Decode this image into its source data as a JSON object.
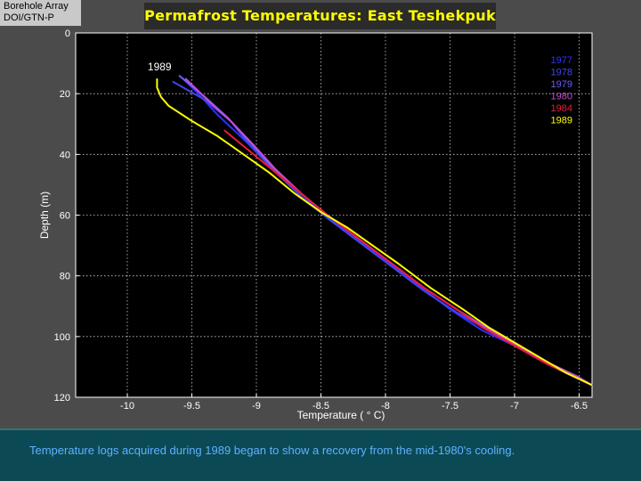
{
  "badge": {
    "line1": "Borehole Array",
    "line2": "DOI/GTN-P"
  },
  "title": "Permafrost Temperatures:  East Teshekpuk",
  "caption": "Temperature logs acquired during 1989 began to show a recovery from the mid-1980's cooling.",
  "chart_data": {
    "type": "line",
    "title": "Permafrost Temperatures:  East Teshekpuk",
    "xlabel": "Temperature (  ° C)",
    "ylabel": "Depth (m)",
    "xlim": [
      -10.4,
      -6.4
    ],
    "ylim": [
      120,
      0
    ],
    "xticks": [
      -10,
      -9.5,
      -9,
      -8.5,
      -8,
      -7.5,
      -7,
      -6.5
    ],
    "xtick_labels": [
      "-10",
      "-9.5",
      "-9",
      "-8.5",
      "-8",
      "-7.5",
      "-7",
      "-6.5"
    ],
    "yticks": [
      0,
      20,
      40,
      60,
      80,
      100,
      120
    ],
    "ytick_labels": [
      "0",
      "20",
      "40",
      "60",
      "80",
      "100",
      "120"
    ],
    "grid": true,
    "legend": "top-right",
    "annotations": [
      {
        "text": "1989",
        "x": -9.75,
        "y": 12
      }
    ],
    "series": [
      {
        "name": "1977",
        "color": "#3030ff",
        "x": [
          -9.57,
          -9.45,
          -9.3,
          -9.1,
          -8.9,
          -8.7,
          -8.5,
          -8.25,
          -8.0,
          -7.75,
          -7.5,
          -7.25,
          -7.0,
          -6.75,
          -6.55,
          -6.4
        ],
        "y": [
          15,
          20,
          27,
          35,
          43,
          51,
          59,
          67,
          75,
          83,
          91,
          98,
          103,
          109,
          113,
          116
        ]
      },
      {
        "name": "1978",
        "color": "#4444ee",
        "x": [
          -9.65,
          -9.4,
          -9.2,
          -9.05,
          -8.85,
          -8.65,
          -8.45,
          -8.2,
          -7.95,
          -7.7,
          -7.45,
          -7.2,
          -6.95,
          -6.7,
          -6.5,
          -6.4
        ],
        "y": [
          16,
          22,
          29,
          37,
          46,
          54,
          61,
          69,
          77,
          85,
          92,
          98,
          104,
          110,
          114,
          116
        ]
      },
      {
        "name": "1979",
        "color": "#6a5cff",
        "x": [
          -9.6,
          -9.4,
          -9.22,
          -9.05,
          -8.88,
          -8.68,
          -8.45,
          -8.2,
          -7.95,
          -7.7,
          -7.45,
          -7.2,
          -6.95,
          -6.7,
          -6.5,
          -6.4
        ],
        "y": [
          14,
          21,
          28,
          36,
          44,
          52,
          60,
          68,
          76,
          84,
          91,
          98,
          104,
          110,
          114,
          116
        ]
      },
      {
        "name": "1980",
        "color": "#c050d0",
        "x": [
          -9.55,
          -9.38,
          -9.2,
          -9.02,
          -8.85,
          -8.65,
          -8.45,
          -8.2,
          -7.95,
          -7.7,
          -7.45,
          -7.22,
          -6.98,
          -6.72,
          -6.52,
          -6.4
        ],
        "y": [
          15,
          22,
          29,
          37,
          45,
          53,
          60,
          68,
          76,
          84,
          91,
          97,
          103,
          109,
          113,
          116
        ]
      },
      {
        "name": "1984",
        "color": "#ee1a3a",
        "x": [
          -9.25,
          -9.05,
          -8.85,
          -8.65,
          -8.45,
          -8.2,
          -7.95,
          -7.7,
          -7.45,
          -7.25,
          -7.0,
          -6.75,
          -6.55,
          -6.4
        ],
        "y": [
          32,
          39,
          46,
          53,
          60,
          68,
          76,
          84,
          91,
          97,
          103,
          109,
          113,
          116
        ]
      },
      {
        "name": "1989",
        "color": "#ffff00",
        "x": [
          -9.77,
          -9.77,
          -9.74,
          -9.68,
          -9.5,
          -9.3,
          -9.1,
          -8.9,
          -8.7,
          -8.5,
          -8.3,
          -8.1,
          -7.9,
          -7.65,
          -7.4,
          -7.2,
          -7.0,
          -6.8,
          -6.6,
          -6.5,
          -6.4
        ],
        "y": [
          15,
          18,
          21,
          24,
          29,
          34,
          40,
          46,
          53,
          59,
          64,
          70,
          76,
          84,
          91,
          97,
          102,
          107,
          112,
          114,
          116
        ]
      }
    ]
  }
}
